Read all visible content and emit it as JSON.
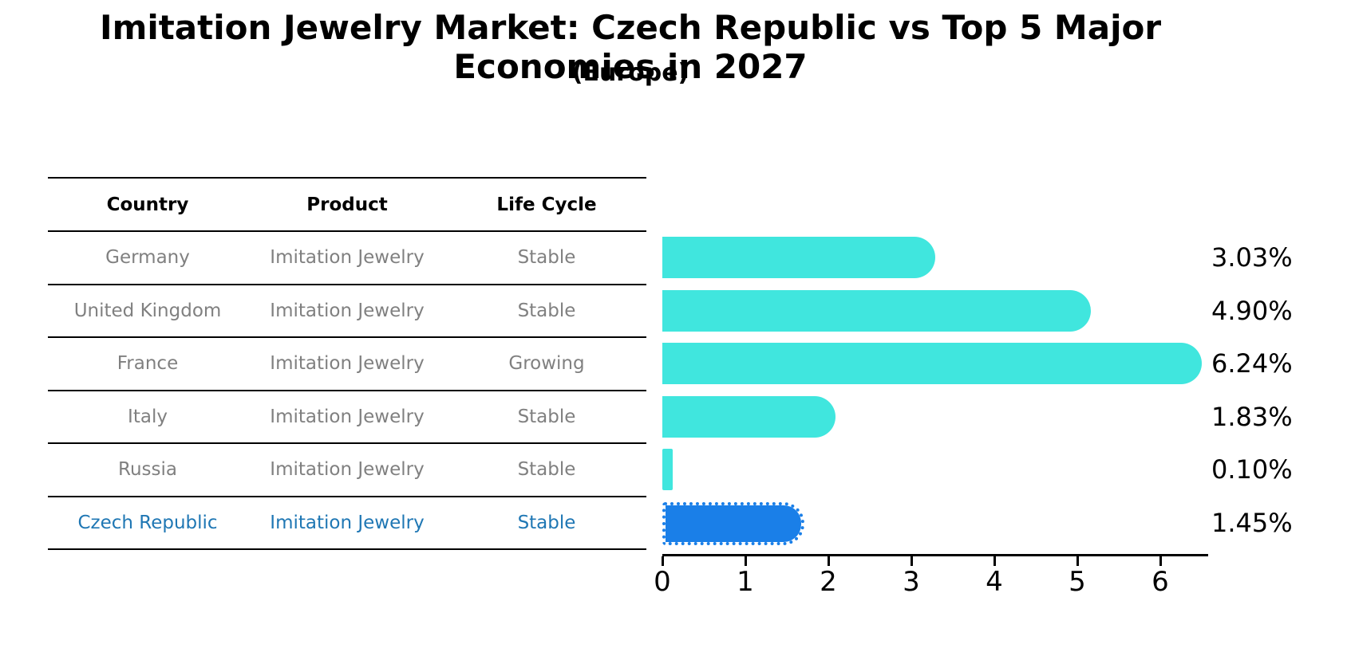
{
  "header": {
    "title": "Imitation Jewelry Market: Czech Republic vs Top 5 Major Economies in 2027",
    "subtitle": "(Europe)"
  },
  "table": {
    "columns": [
      "Country",
      "Product",
      "Life Cycle"
    ],
    "rows": [
      {
        "country": "Germany",
        "product": "Imitation Jewelry",
        "life_cycle": "Stable",
        "highlighted": false
      },
      {
        "country": "United Kingdom",
        "product": "Imitation Jewelry",
        "life_cycle": "Stable",
        "highlighted": false
      },
      {
        "country": "France",
        "product": "Imitation Jewelry",
        "life_cycle": "Growing",
        "highlighted": false
      },
      {
        "country": "Italy",
        "product": "Imitation Jewelry",
        "life_cycle": "Stable",
        "highlighted": false
      },
      {
        "country": "Russia",
        "product": "Imitation Jewelry",
        "life_cycle": "Stable",
        "highlighted": false
      },
      {
        "country": "Czech Republic",
        "product": "Imitation Jewelry",
        "life_cycle": "Stable",
        "highlighted": true
      }
    ]
  },
  "chart_data": {
    "type": "bar",
    "orientation": "horizontal",
    "title": "Imitation Jewelry Market: Czech Republic vs Top 5 Major Economies in 2027",
    "subtitle": "(Europe)",
    "categories": [
      "Germany",
      "United Kingdom",
      "France",
      "Italy",
      "Russia",
      "Czech Republic"
    ],
    "values": [
      3.03,
      4.9,
      6.24,
      1.83,
      0.1,
      1.45
    ],
    "value_labels": [
      "3.03%",
      "4.90%",
      "6.24%",
      "1.83%",
      "0.10%",
      "1.45%"
    ],
    "xlabel": "",
    "ylabel": "",
    "xticks": [
      0,
      1,
      2,
      3,
      4,
      5,
      6
    ],
    "xlim": [
      0,
      6.6
    ],
    "grid": false,
    "legend": false,
    "bar_color": "#40E6DE",
    "highlight_bar_color": "#1A7FE8",
    "highlight_index": 5,
    "highlight_edge_style": "dotted"
  },
  "colors": {
    "row_text": "#808080",
    "header_text": "#000000",
    "highlight_text": "#1f77b4",
    "table_line": "#000000",
    "axis": "#000000",
    "value_label_text": "#000000"
  }
}
